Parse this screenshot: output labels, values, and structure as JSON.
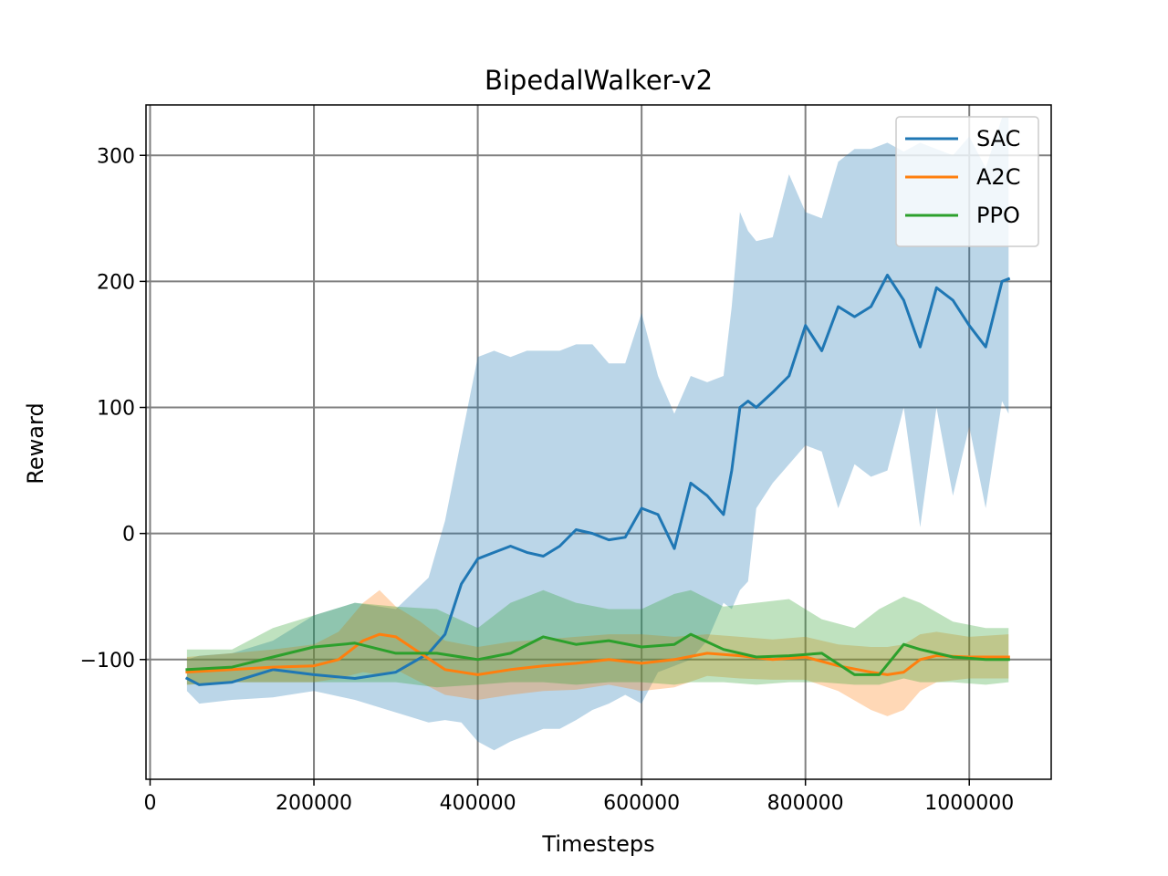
{
  "chart_data": {
    "type": "line",
    "title": "BipedalWalker-v2",
    "xlabel": "Timesteps",
    "ylabel": "Reward",
    "xlim": [
      -5000,
      1100000
    ],
    "ylim": [
      -195,
      340
    ],
    "xticks": [
      0,
      200000,
      400000,
      600000,
      800000,
      1000000
    ],
    "xtick_labels": [
      "0",
      "200000",
      "400000",
      "600000",
      "800000",
      "1000000"
    ],
    "yticks": [
      -100,
      0,
      100,
      200,
      300
    ],
    "ytick_labels": [
      "−100",
      "0",
      "100",
      "200",
      "300"
    ],
    "grid": true,
    "legend_position": "top-right",
    "band_opacity": 0.3,
    "series": [
      {
        "name": "SAC",
        "color": "#1f77b4",
        "x": [
          45000,
          60000,
          100000,
          150000,
          200000,
          250000,
          300000,
          340000,
          360000,
          380000,
          400000,
          420000,
          440000,
          460000,
          480000,
          500000,
          520000,
          540000,
          560000,
          580000,
          600000,
          620000,
          640000,
          660000,
          680000,
          700000,
          710000,
          720000,
          730000,
          740000,
          760000,
          780000,
          800000,
          820000,
          840000,
          860000,
          880000,
          900000,
          920000,
          940000,
          960000,
          980000,
          1000000,
          1020000,
          1040000,
          1048000
        ],
        "mean": [
          -115,
          -120,
          -118,
          -108,
          -112,
          -115,
          -110,
          -95,
          -80,
          -40,
          -20,
          -15,
          -10,
          -15,
          -18,
          -10,
          3,
          0,
          -5,
          -3,
          20,
          15,
          -12,
          40,
          30,
          15,
          50,
          100,
          105,
          100,
          112,
          125,
          165,
          145,
          180,
          172,
          180,
          205,
          185,
          148,
          195,
          185,
          165,
          148,
          200,
          202
        ],
        "upper": [
          -100,
          -97,
          -95,
          -85,
          -65,
          -55,
          -60,
          -35,
          10,
          75,
          140,
          145,
          140,
          145,
          145,
          145,
          150,
          150,
          135,
          135,
          175,
          125,
          95,
          125,
          120,
          125,
          180,
          255,
          240,
          232,
          235,
          285,
          255,
          250,
          295,
          305,
          305,
          310,
          303,
          310,
          305,
          300,
          315,
          290,
          330,
          330
        ],
        "lower": [
          -125,
          -135,
          -132,
          -130,
          -125,
          -132,
          -142,
          -150,
          -148,
          -150,
          -165,
          -172,
          -165,
          -160,
          -155,
          -155,
          -148,
          -140,
          -135,
          -128,
          -135,
          -110,
          -105,
          -100,
          -85,
          -55,
          -60,
          -45,
          -38,
          20,
          40,
          55,
          70,
          65,
          20,
          55,
          45,
          50,
          100,
          5,
          100,
          30,
          85,
          20,
          105,
          95
        ]
      },
      {
        "name": "A2C",
        "color": "#ff7f0e",
        "x": [
          45000,
          100000,
          150000,
          200000,
          230000,
          260000,
          280000,
          300000,
          330000,
          360000,
          400000,
          440000,
          480000,
          520000,
          560000,
          600000,
          640000,
          680000,
          720000,
          760000,
          800000,
          840000,
          880000,
          900000,
          920000,
          940000,
          960000,
          1000000,
          1048000
        ],
        "mean": [
          -110,
          -108,
          -106,
          -105,
          -100,
          -85,
          -80,
          -82,
          -95,
          -108,
          -112,
          -108,
          -105,
          -103,
          -100,
          -103,
          -100,
          -95,
          -97,
          -100,
          -98,
          -105,
          -110,
          -112,
          -110,
          -100,
          -97,
          -98,
          -98
        ],
        "upper": [
          -98,
          -95,
          -92,
          -88,
          -78,
          -55,
          -45,
          -58,
          -70,
          -85,
          -90,
          -86,
          -84,
          -82,
          -80,
          -80,
          -82,
          -80,
          -82,
          -84,
          -82,
          -88,
          -90,
          -90,
          -88,
          -80,
          -78,
          -82,
          -80
        ],
        "lower": [
          -120,
          -118,
          -118,
          -118,
          -115,
          -110,
          -112,
          -108,
          -118,
          -128,
          -132,
          -128,
          -125,
          -124,
          -120,
          -125,
          -122,
          -113,
          -115,
          -116,
          -116,
          -125,
          -140,
          -145,
          -140,
          -125,
          -118,
          -115,
          -115
        ]
      },
      {
        "name": "PPO",
        "color": "#2ca02c",
        "x": [
          45000,
          100000,
          150000,
          200000,
          250000,
          300000,
          350000,
          400000,
          440000,
          480000,
          520000,
          560000,
          600000,
          640000,
          660000,
          700000,
          740000,
          780000,
          820000,
          860000,
          890000,
          920000,
          940000,
          980000,
          1020000,
          1048000
        ],
        "mean": [
          -108,
          -106,
          -98,
          -90,
          -87,
          -95,
          -95,
          -100,
          -95,
          -82,
          -88,
          -85,
          -90,
          -88,
          -80,
          -92,
          -98,
          -97,
          -95,
          -112,
          -112,
          -88,
          -92,
          -98,
          -100,
          -100
        ],
        "upper": [
          -92,
          -92,
          -75,
          -65,
          -55,
          -58,
          -60,
          -75,
          -55,
          -45,
          -55,
          -60,
          -60,
          -48,
          -45,
          -58,
          -55,
          -52,
          -68,
          -75,
          -60,
          -50,
          -55,
          -70,
          -75,
          -75
        ],
        "lower": [
          -120,
          -118,
          -118,
          -118,
          -118,
          -118,
          -122,
          -120,
          -118,
          -118,
          -120,
          -118,
          -118,
          -120,
          -118,
          -118,
          -120,
          -118,
          -118,
          -120,
          -120,
          -115,
          -118,
          -118,
          -120,
          -118
        ]
      }
    ]
  }
}
